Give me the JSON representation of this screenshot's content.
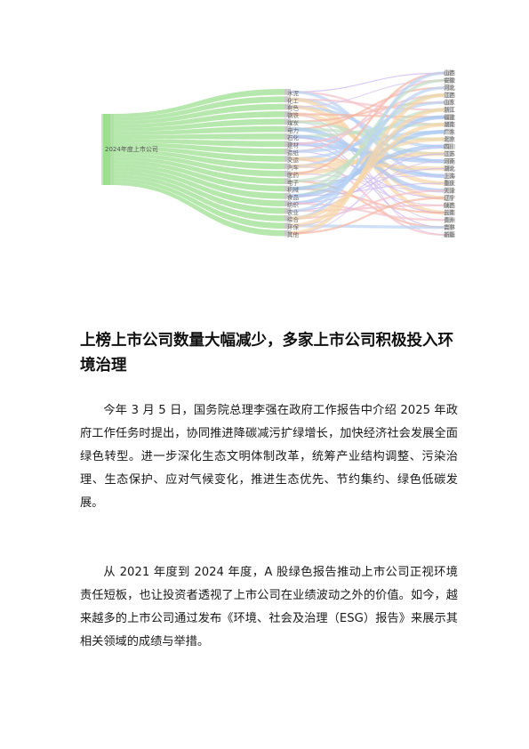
{
  "chart_data": {
    "type": "sankey",
    "source_label": "2024年度上市公司",
    "middle_labels": [
      "水泥",
      "化工",
      "有色",
      "钢铁",
      "煤炭",
      "电力",
      "石化",
      "建材",
      "造纸",
      "交运",
      "汽车",
      "医药",
      "电子",
      "机械",
      "食品",
      "纺织",
      "农业",
      "综合",
      "环保",
      "其他"
    ],
    "target_labels": [
      "山西",
      "安徽",
      "河北",
      "江西",
      "山东",
      "浙江",
      "福建",
      "湖南",
      "广东",
      "北京",
      "四川",
      "江苏",
      "河南",
      "湖北",
      "上海",
      "重庆",
      "天津",
      "辽宁",
      "陕西",
      "云南",
      "贵州",
      "吉林",
      "新疆"
    ],
    "link_colors": [
      "#c7b3f2",
      "#f4c2c9",
      "#b9d3f5",
      "#f6d6a8",
      "#d9c6f0",
      "#f5b6a3",
      "#c2e0c6",
      "#a9c8f0"
    ],
    "source_color": "#9bdf8f",
    "middle_color": "#a9e39d"
  },
  "article": {
    "heading": "上榜上市公司数量大幅减少，多家上市公司积极投入环境治理",
    "paragraphs": [
      "今年 3 月 5 日，国务院总理李强在政府工作报告中介绍 2025 年政府工作任务时提出，协同推进降碳减污扩绿增长，加快经济社会发展全面绿色转型。进一步深化生态文明体制改革，统筹产业结构调整、污染治理、生态保护、应对气候变化，推进生态优先、节约集约、绿色低碳发展。",
      "从 2021 年度到 2024 年度，A 股绿色报告推动上市公司正视环境责任短板，也让投资者透视了上市公司在业绩波动之外的价值。如今，越来越多的上市公司通过发布《环境、社会及治理（ESG）报告》来展示其相关领域的成绩与举措。"
    ]
  }
}
